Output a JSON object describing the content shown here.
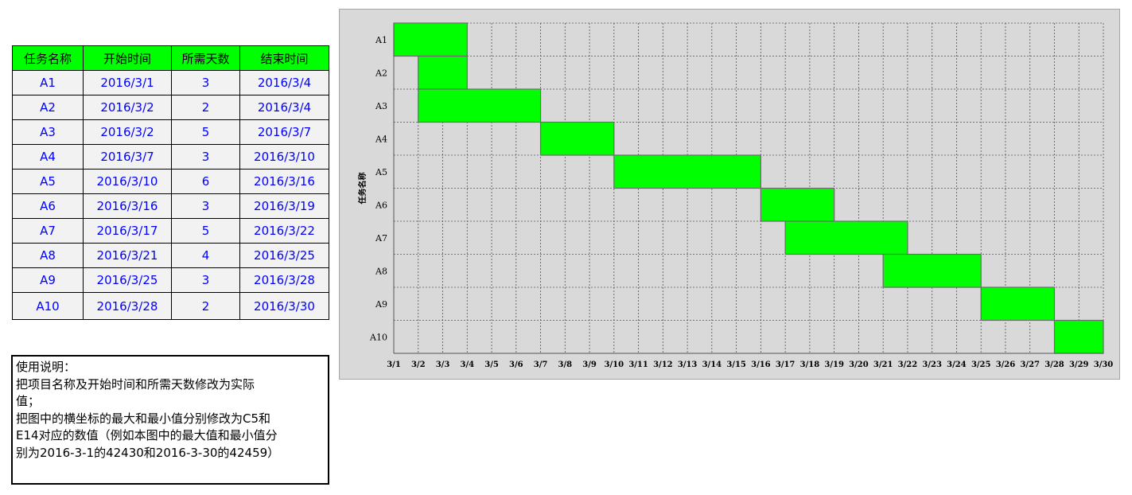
{
  "table": {
    "headers": [
      "任务名称",
      "开始时间",
      "所需天数",
      "结束时间"
    ],
    "rows": [
      [
        "A1",
        "2016/3/1",
        "3",
        "2016/3/4"
      ],
      [
        "A2",
        "2016/3/2",
        "2",
        "2016/3/4"
      ],
      [
        "A3",
        "2016/3/2",
        "5",
        "2016/3/7"
      ],
      [
        "A4",
        "2016/3/7",
        "3",
        "2016/3/10"
      ],
      [
        "A5",
        "2016/3/10",
        "6",
        "2016/3/16"
      ],
      [
        "A6",
        "2016/3/16",
        "3",
        "2016/3/19"
      ],
      [
        "A7",
        "2016/3/17",
        "5",
        "2016/3/22"
      ],
      [
        "A8",
        "2016/3/21",
        "4",
        "2016/3/25"
      ],
      [
        "A9",
        "2016/3/25",
        "3",
        "2016/3/28"
      ],
      [
        "A10",
        "2016/3/28",
        "2",
        "2016/3/30"
      ]
    ]
  },
  "notes": {
    "lines": [
      "使用说明：",
      "把项目名称及开始时间和所需天数修改为实际",
      "值；",
      "把图中的横坐标的最大和最小值分别修改为C5和",
      "E14对应的数值（例如本图中的最大值和最小值分",
      "别为2016-3-1的42430和2016-3-30的42459）"
    ]
  },
  "colors": {
    "header_bg": "#00ff00",
    "cell_text": "#0000ff",
    "bar_fill": "#00ff00",
    "plot_bg": "#d9d9d9"
  },
  "chart_data": {
    "type": "bar",
    "orientation": "horizontal-gantt",
    "ylabel": "任务名称",
    "xlabel": "",
    "categories": [
      "A1",
      "A2",
      "A3",
      "A4",
      "A5",
      "A6",
      "A7",
      "A8",
      "A9",
      "A10"
    ],
    "start": [
      "3/1",
      "3/2",
      "3/2",
      "3/7",
      "3/10",
      "3/16",
      "3/17",
      "3/21",
      "3/25",
      "3/28"
    ],
    "duration": [
      3,
      2,
      5,
      3,
      6,
      3,
      5,
      4,
      3,
      2
    ],
    "x_ticks": [
      "3/1",
      "3/2",
      "3/3",
      "3/4",
      "3/5",
      "3/6",
      "3/7",
      "3/8",
      "3/9",
      "3/10",
      "3/11",
      "3/12",
      "3/13",
      "3/14",
      "3/15",
      "3/16",
      "3/17",
      "3/18",
      "3/19",
      "3/20",
      "3/21",
      "3/22",
      "3/23",
      "3/24",
      "3/25",
      "3/26",
      "3/27",
      "3/28",
      "3/29",
      "3/30"
    ],
    "xlim": [
      "2016/3/1",
      "2016/3/30"
    ],
    "grid": true,
    "legend": "none"
  }
}
